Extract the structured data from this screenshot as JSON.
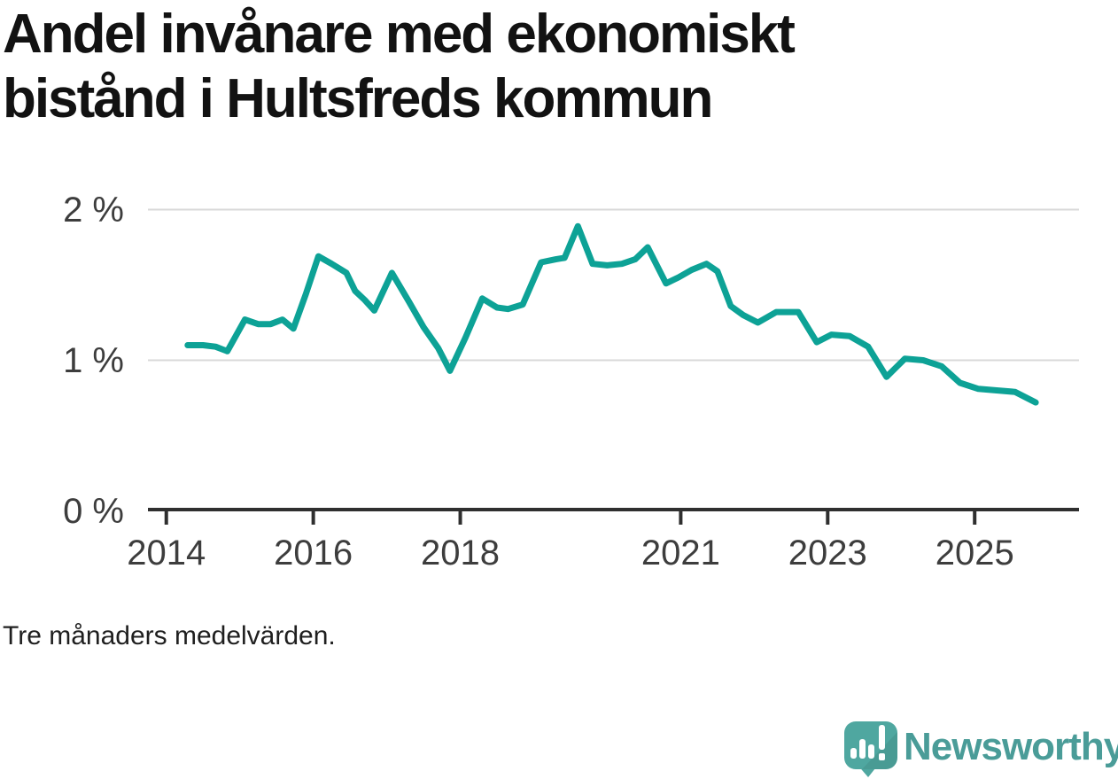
{
  "title": "Andel invånare med ekonomiskt\nbistånd i Hultsfreds kommun",
  "footnote": "Tre månaders medelvärden.",
  "branding": {
    "wordmark": "Newsworthy",
    "logo_icon": "speech-bubble-with-bar-chart-and-exclamation"
  },
  "colors": {
    "background": "#ffffff",
    "line": "#0da296",
    "grid": "#d9d9d9",
    "axis": "#2f2f2f",
    "tick_label": "#3d3d3d",
    "title": "#121212",
    "logo_bubble": "#4fa7a0",
    "wordmark": "#4a9c98"
  },
  "chart_data": {
    "type": "line",
    "title": "Andel invånare med ekonomiskt bistånd i Hultsfreds kommun",
    "subtitle": "Tre månaders medelvärden.",
    "unit": "%",
    "xlabel": "",
    "ylabel": "",
    "grid": "horizontal",
    "legend": "none",
    "xlim": [
      2013.75,
      2026.42
    ],
    "ylim": [
      0,
      2.35
    ],
    "x_ticks": [
      "2014",
      "2016",
      "2018",
      "2021",
      "2023",
      "2025"
    ],
    "x_tick_values": [
      2014,
      2016,
      2018,
      2021,
      2023,
      2025
    ],
    "y_ticks": [
      {
        "value": 2,
        "label": "2 %"
      },
      {
        "value": 1,
        "label": "1 %"
      },
      {
        "value": 0,
        "label": "0 %"
      }
    ],
    "series": [
      {
        "name": "Andel invånare med ekonomiskt bistånd",
        "points": [
          [
            2014.29,
            1.1
          ],
          [
            2014.5,
            1.1
          ],
          [
            2014.67,
            1.09
          ],
          [
            2014.83,
            1.06
          ],
          [
            2015.07,
            1.27
          ],
          [
            2015.25,
            1.24
          ],
          [
            2015.42,
            1.24
          ],
          [
            2015.58,
            1.27
          ],
          [
            2015.73,
            1.21
          ],
          [
            2015.9,
            1.44
          ],
          [
            2016.07,
            1.69
          ],
          [
            2016.25,
            1.64
          ],
          [
            2016.45,
            1.58
          ],
          [
            2016.57,
            1.46
          ],
          [
            2016.7,
            1.4
          ],
          [
            2016.83,
            1.33
          ],
          [
            2017.07,
            1.58
          ],
          [
            2017.3,
            1.39
          ],
          [
            2017.5,
            1.22
          ],
          [
            2017.7,
            1.08
          ],
          [
            2017.86,
            0.93
          ],
          [
            2018.07,
            1.15
          ],
          [
            2018.3,
            1.41
          ],
          [
            2018.5,
            1.35
          ],
          [
            2018.65,
            1.34
          ],
          [
            2018.85,
            1.37
          ],
          [
            2019.1,
            1.65
          ],
          [
            2019.3,
            1.67
          ],
          [
            2019.42,
            1.68
          ],
          [
            2019.6,
            1.89
          ],
          [
            2019.8,
            1.64
          ],
          [
            2020.0,
            1.63
          ],
          [
            2020.2,
            1.64
          ],
          [
            2020.38,
            1.67
          ],
          [
            2020.55,
            1.75
          ],
          [
            2020.8,
            1.51
          ],
          [
            2020.97,
            1.55
          ],
          [
            2021.15,
            1.6
          ],
          [
            2021.35,
            1.64
          ],
          [
            2021.5,
            1.59
          ],
          [
            2021.68,
            1.36
          ],
          [
            2021.85,
            1.3
          ],
          [
            2022.05,
            1.25
          ],
          [
            2022.3,
            1.32
          ],
          [
            2022.6,
            1.32
          ],
          [
            2022.85,
            1.12
          ],
          [
            2023.05,
            1.17
          ],
          [
            2023.3,
            1.16
          ],
          [
            2023.55,
            1.09
          ],
          [
            2023.8,
            0.89
          ],
          [
            2024.05,
            1.01
          ],
          [
            2024.3,
            1.0
          ],
          [
            2024.55,
            0.96
          ],
          [
            2024.8,
            0.85
          ],
          [
            2025.05,
            0.81
          ],
          [
            2025.3,
            0.8
          ],
          [
            2025.55,
            0.79
          ],
          [
            2025.83,
            0.72
          ]
        ]
      }
    ]
  }
}
